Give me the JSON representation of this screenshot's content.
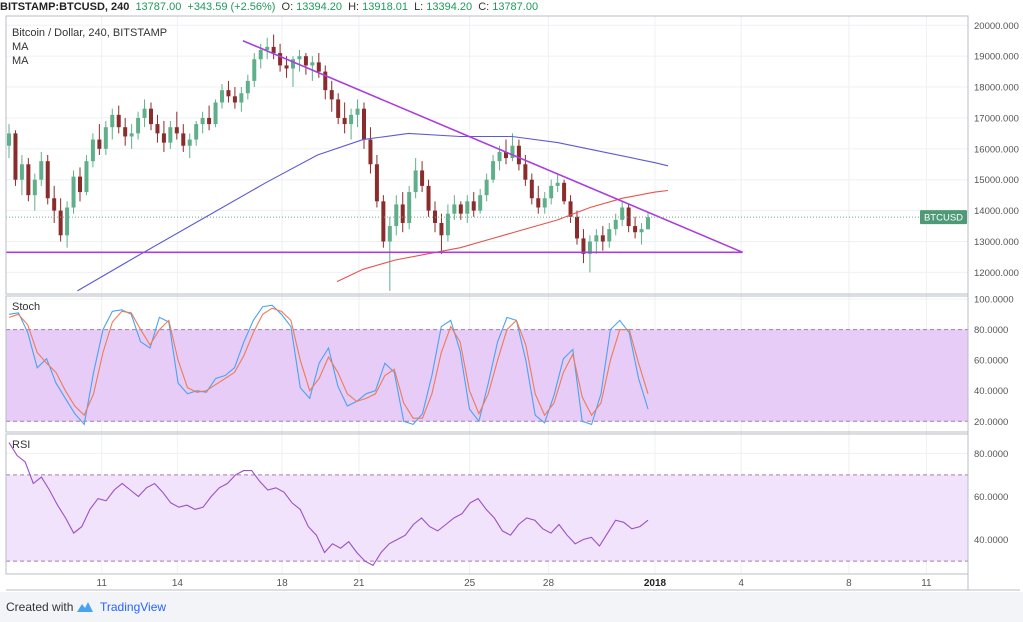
{
  "header": {
    "symbol": "BITSTAMP:BTCUSD, 240",
    "last": "13787.00",
    "change": "+343.59 (+2.56%)",
    "open_label": "O:",
    "open": "13394.20",
    "high_label": "H:",
    "high": "13918.01",
    "low_label": "L:",
    "low": "13394.20",
    "close_label": "C:",
    "close": "13787.00"
  },
  "footer": {
    "created_with": "Created with",
    "brand": "TradingView"
  },
  "colors": {
    "candle_up": "#5fb08a",
    "candle_down": "#8b2c2c",
    "ma_fast": "#e8534a",
    "ma_slow": "#5b5bd6",
    "trendline": "#a93ee0",
    "stoch_k": "#4aa3ef",
    "stoch_d": "#f07a55",
    "rsi": "#9c4fc6",
    "price_tag": "#4e9a76"
  },
  "chart_data": [
    {
      "type": "candlestick",
      "title": "Bitcoin / Dollar, 240, BITSTAMP",
      "indicators": [
        "MA",
        "MA"
      ],
      "price_label": "BTCUSD",
      "current_price": 13787,
      "ylim": [
        11300,
        20300
      ],
      "y_ticks": [
        "12000.000",
        "13000.000",
        "14000.000",
        "15000.000",
        "16000.000",
        "17000.000",
        "18000.000",
        "19000.000",
        "20000.000"
      ],
      "x_labels": [
        "11",
        "14",
        "18",
        "21",
        "25",
        "28",
        "2018",
        "4",
        "8",
        "11"
      ],
      "candles": [
        {
          "o": 16100,
          "h": 16800,
          "l": 15700,
          "c": 16500
        },
        {
          "o": 16500,
          "h": 16600,
          "l": 14800,
          "c": 15000
        },
        {
          "o": 15000,
          "h": 15800,
          "l": 14500,
          "c": 15500
        },
        {
          "o": 15500,
          "h": 15700,
          "l": 14300,
          "c": 14500
        },
        {
          "o": 14500,
          "h": 15200,
          "l": 14000,
          "c": 15000
        },
        {
          "o": 15000,
          "h": 15900,
          "l": 14800,
          "c": 15600
        },
        {
          "o": 15600,
          "h": 15800,
          "l": 14200,
          "c": 14400
        },
        {
          "o": 14400,
          "h": 14800,
          "l": 13600,
          "c": 14000
        },
        {
          "o": 14000,
          "h": 14400,
          "l": 13000,
          "c": 13200
        },
        {
          "o": 13200,
          "h": 14300,
          "l": 12800,
          "c": 14100
        },
        {
          "o": 14100,
          "h": 15300,
          "l": 13900,
          "c": 15100
        },
        {
          "o": 15100,
          "h": 15400,
          "l": 14300,
          "c": 14600
        },
        {
          "o": 14600,
          "h": 15800,
          "l": 14500,
          "c": 15600
        },
        {
          "o": 15600,
          "h": 16500,
          "l": 15400,
          "c": 16300
        },
        {
          "o": 16300,
          "h": 16800,
          "l": 15800,
          "c": 16000
        },
        {
          "o": 16000,
          "h": 16900,
          "l": 15800,
          "c": 16700
        },
        {
          "o": 16700,
          "h": 17300,
          "l": 16300,
          "c": 17100
        },
        {
          "o": 17100,
          "h": 17400,
          "l": 16500,
          "c": 16700
        },
        {
          "o": 16700,
          "h": 17000,
          "l": 16100,
          "c": 16400
        },
        {
          "o": 16400,
          "h": 16800,
          "l": 16000,
          "c": 16500
        },
        {
          "o": 16500,
          "h": 17200,
          "l": 16300,
          "c": 17000
        },
        {
          "o": 17000,
          "h": 17600,
          "l": 16700,
          "c": 17300
        },
        {
          "o": 17300,
          "h": 17500,
          "l": 16600,
          "c": 16800
        },
        {
          "o": 16800,
          "h": 17100,
          "l": 16200,
          "c": 16500
        },
        {
          "o": 16500,
          "h": 16900,
          "l": 15900,
          "c": 16200
        },
        {
          "o": 16200,
          "h": 16900,
          "l": 16000,
          "c": 16700
        },
        {
          "o": 16700,
          "h": 17200,
          "l": 16300,
          "c": 16500
        },
        {
          "o": 16500,
          "h": 16800,
          "l": 15900,
          "c": 16100
        },
        {
          "o": 16100,
          "h": 16500,
          "l": 15700,
          "c": 16300
        },
        {
          "o": 16300,
          "h": 16900,
          "l": 16100,
          "c": 16800
        },
        {
          "o": 16800,
          "h": 17200,
          "l": 16500,
          "c": 17000
        },
        {
          "o": 17000,
          "h": 17400,
          "l": 16600,
          "c": 16800
        },
        {
          "o": 16800,
          "h": 17600,
          "l": 16700,
          "c": 17500
        },
        {
          "o": 17500,
          "h": 18100,
          "l": 17300,
          "c": 17900
        },
        {
          "o": 17900,
          "h": 18200,
          "l": 17500,
          "c": 17700
        },
        {
          "o": 17700,
          "h": 18000,
          "l": 17300,
          "c": 17500
        },
        {
          "o": 17500,
          "h": 18000,
          "l": 17200,
          "c": 17800
        },
        {
          "o": 17800,
          "h": 18400,
          "l": 17600,
          "c": 18200
        },
        {
          "o": 18200,
          "h": 19100,
          "l": 18000,
          "c": 18900
        },
        {
          "o": 18900,
          "h": 19400,
          "l": 18600,
          "c": 19200
        },
        {
          "o": 19200,
          "h": 19600,
          "l": 18900,
          "c": 19300
        },
        {
          "o": 19300,
          "h": 19700,
          "l": 18900,
          "c": 19100
        },
        {
          "o": 19100,
          "h": 19400,
          "l": 18500,
          "c": 18700
        },
        {
          "o": 18700,
          "h": 19000,
          "l": 18300,
          "c": 18600
        },
        {
          "o": 18600,
          "h": 19000,
          "l": 18000,
          "c": 18900
        },
        {
          "o": 18900,
          "h": 19200,
          "l": 18500,
          "c": 19000
        },
        {
          "o": 19000,
          "h": 19100,
          "l": 18400,
          "c": 18700
        },
        {
          "o": 18700,
          "h": 19000,
          "l": 18200,
          "c": 18800
        },
        {
          "o": 18800,
          "h": 19100,
          "l": 18300,
          "c": 18500
        },
        {
          "o": 18500,
          "h": 18700,
          "l": 17600,
          "c": 17900
        },
        {
          "o": 17900,
          "h": 18200,
          "l": 17200,
          "c": 17600
        },
        {
          "o": 17600,
          "h": 17800,
          "l": 16800,
          "c": 17000
        },
        {
          "o": 17000,
          "h": 17500,
          "l": 16500,
          "c": 16800
        },
        {
          "o": 16800,
          "h": 17300,
          "l": 16300,
          "c": 17100
        },
        {
          "o": 17100,
          "h": 17600,
          "l": 16700,
          "c": 17300
        },
        {
          "o": 17300,
          "h": 17500,
          "l": 16000,
          "c": 16300
        },
        {
          "o": 16300,
          "h": 16700,
          "l": 15200,
          "c": 15500
        },
        {
          "o": 15500,
          "h": 15800,
          "l": 14100,
          "c": 14300
        },
        {
          "o": 14300,
          "h": 14500,
          "l": 12800,
          "c": 13000
        },
        {
          "o": 13000,
          "h": 13800,
          "l": 11400,
          "c": 13500
        },
        {
          "o": 13500,
          "h": 14500,
          "l": 13200,
          "c": 14200
        },
        {
          "o": 14200,
          "h": 14600,
          "l": 13300,
          "c": 13600
        },
        {
          "o": 13600,
          "h": 14800,
          "l": 13400,
          "c": 14600
        },
        {
          "o": 14600,
          "h": 15700,
          "l": 14400,
          "c": 15300
        },
        {
          "o": 15300,
          "h": 15600,
          "l": 14600,
          "c": 14800
        },
        {
          "o": 14800,
          "h": 15000,
          "l": 13800,
          "c": 14000
        },
        {
          "o": 14000,
          "h": 14300,
          "l": 13300,
          "c": 13600
        },
        {
          "o": 13600,
          "h": 13900,
          "l": 12600,
          "c": 13200
        },
        {
          "o": 13200,
          "h": 14200,
          "l": 13000,
          "c": 13900
        },
        {
          "o": 13900,
          "h": 14500,
          "l": 13700,
          "c": 14200
        },
        {
          "o": 14200,
          "h": 14300,
          "l": 13700,
          "c": 13900
        },
        {
          "o": 13900,
          "h": 14500,
          "l": 13600,
          "c": 14300
        },
        {
          "o": 14300,
          "h": 14600,
          "l": 13800,
          "c": 14000
        },
        {
          "o": 14000,
          "h": 14700,
          "l": 13900,
          "c": 14500
        },
        {
          "o": 14500,
          "h": 15200,
          "l": 14300,
          "c": 15000
        },
        {
          "o": 15000,
          "h": 15800,
          "l": 14900,
          "c": 15600
        },
        {
          "o": 15600,
          "h": 16100,
          "l": 15300,
          "c": 15900
        },
        {
          "o": 15900,
          "h": 16300,
          "l": 15500,
          "c": 15700
        },
        {
          "o": 15700,
          "h": 16500,
          "l": 15600,
          "c": 16100
        },
        {
          "o": 16100,
          "h": 16300,
          "l": 15300,
          "c": 15500
        },
        {
          "o": 15500,
          "h": 15800,
          "l": 14800,
          "c": 15000
        },
        {
          "o": 15000,
          "h": 15200,
          "l": 14200,
          "c": 14400
        },
        {
          "o": 14400,
          "h": 14800,
          "l": 13900,
          "c": 14100
        },
        {
          "o": 14100,
          "h": 14600,
          "l": 13900,
          "c": 14400
        },
        {
          "o": 14400,
          "h": 15000,
          "l": 14200,
          "c": 14800
        },
        {
          "o": 14800,
          "h": 15200,
          "l": 14600,
          "c": 14900
        },
        {
          "o": 14900,
          "h": 15000,
          "l": 14200,
          "c": 14300
        },
        {
          "o": 14300,
          "h": 14500,
          "l": 13600,
          "c": 13800
        },
        {
          "o": 13800,
          "h": 14000,
          "l": 12900,
          "c": 13100
        },
        {
          "o": 13100,
          "h": 13400,
          "l": 12300,
          "c": 12600
        },
        {
          "o": 12600,
          "h": 13200,
          "l": 12000,
          "c": 13000
        },
        {
          "o": 13000,
          "h": 13400,
          "l": 12600,
          "c": 13200
        },
        {
          "o": 13200,
          "h": 13500,
          "l": 12700,
          "c": 13000
        },
        {
          "o": 13000,
          "h": 13600,
          "l": 12800,
          "c": 13400
        },
        {
          "o": 13400,
          "h": 13900,
          "l": 13200,
          "c": 13700
        },
        {
          "o": 13700,
          "h": 14300,
          "l": 13500,
          "c": 14100
        },
        {
          "o": 14100,
          "h": 14200,
          "l": 13300,
          "c": 13500
        },
        {
          "o": 13500,
          "h": 13800,
          "l": 13100,
          "c": 13300
        },
        {
          "o": 13300,
          "h": 13600,
          "l": 12900,
          "c": 13400
        },
        {
          "o": 13394.2,
          "h": 13918.01,
          "l": 13394.2,
          "c": 13787
        }
      ],
      "ma_fast_series": [
        {
          "x": 0.51,
          "y": 11700
        },
        {
          "x": 0.55,
          "y": 12100
        },
        {
          "x": 0.6,
          "y": 12400
        },
        {
          "x": 0.65,
          "y": 12600
        },
        {
          "x": 0.7,
          "y": 12800
        },
        {
          "x": 0.75,
          "y": 13100
        },
        {
          "x": 0.8,
          "y": 13400
        },
        {
          "x": 0.85,
          "y": 13700
        },
        {
          "x": 0.9,
          "y": 14100
        },
        {
          "x": 0.95,
          "y": 14400
        },
        {
          "x": 1.0,
          "y": 14600
        },
        {
          "x": 1.02,
          "y": 14650
        }
      ],
      "ma_slow_series": [
        {
          "x": 0.11,
          "y": 11400
        },
        {
          "x": 0.2,
          "y": 12500
        },
        {
          "x": 0.3,
          "y": 13700
        },
        {
          "x": 0.4,
          "y": 14900
        },
        {
          "x": 0.48,
          "y": 15800
        },
        {
          "x": 0.55,
          "y": 16300
        },
        {
          "x": 0.62,
          "y": 16500
        },
        {
          "x": 0.7,
          "y": 16400
        },
        {
          "x": 0.78,
          "y": 16400
        },
        {
          "x": 0.85,
          "y": 16200
        },
        {
          "x": 0.92,
          "y": 15900
        },
        {
          "x": 1.0,
          "y": 15550
        },
        {
          "x": 1.02,
          "y": 15450
        }
      ],
      "trendlines": [
        {
          "from": {
            "x": 0.0,
            "y": 12650
          },
          "to": {
            "x": 1.135,
            "y": 12650
          }
        },
        {
          "from": {
            "x": 0.365,
            "y": 19500
          },
          "to": {
            "x": 1.135,
            "y": 12650
          }
        }
      ]
    },
    {
      "type": "line",
      "title": "Stoch",
      "ylim": [
        13,
        102
      ],
      "y_ticks": [
        "20.0000",
        "40.0000",
        "60.0000",
        "80.0000",
        "100.0000"
      ],
      "bands": [
        20,
        80
      ],
      "series": [
        {
          "values": [
            90,
            91,
            78,
            55,
            61,
            45,
            35,
            25,
            18,
            52,
            80,
            92,
            93,
            90,
            72,
            68,
            88,
            85,
            45,
            38,
            40,
            39,
            48,
            50,
            55,
            72,
            86,
            95,
            96,
            90,
            82,
            42,
            35,
            58,
            68,
            43,
            30,
            33,
            38,
            40,
            58,
            52,
            20,
            18,
            25,
            50,
            82,
            86,
            66,
            28,
            20,
            45,
            72,
            88,
            86,
            60,
            24,
            19,
            37,
            61,
            67,
            20,
            18,
            38,
            80,
            86,
            78,
            48,
            28
          ]
        },
        {
          "values": [
            88,
            90,
            83,
            65,
            58,
            52,
            40,
            30,
            24,
            38,
            65,
            85,
            92,
            91,
            80,
            70,
            80,
            86,
            60,
            42,
            39,
            40,
            44,
            48,
            52,
            63,
            78,
            90,
            94,
            92,
            86,
            60,
            40,
            48,
            62,
            52,
            38,
            33,
            35,
            38,
            50,
            54,
            32,
            22,
            22,
            38,
            65,
            82,
            72,
            40,
            25,
            38,
            60,
            80,
            86,
            70,
            38,
            24,
            32,
            52,
            64,
            36,
            24,
            32,
            60,
            80,
            80,
            58,
            38
          ]
        }
      ]
    },
    {
      "type": "line",
      "title": "RSI",
      "ylim": [
        24,
        89
      ],
      "y_ticks": [
        "40.0000",
        "60.0000",
        "80.0000"
      ],
      "bands": [
        30,
        70
      ],
      "series": [
        {
          "values": [
            85,
            79,
            76,
            66,
            69,
            63,
            56,
            50,
            43,
            46,
            54,
            59,
            58,
            63,
            66,
            63,
            60,
            64,
            66,
            62,
            57,
            55,
            56,
            54,
            55,
            60,
            64,
            66,
            70,
            72,
            72,
            67,
            63,
            64,
            62,
            57,
            54,
            46,
            42,
            34,
            38,
            36,
            39,
            34,
            30,
            28,
            34,
            38,
            40,
            42,
            47,
            50,
            46,
            44,
            47,
            50,
            52,
            57,
            59,
            54,
            50,
            44,
            42,
            47,
            50,
            49,
            45,
            43,
            47,
            42,
            38,
            40,
            41,
            37,
            43,
            49,
            48,
            45,
            46,
            49
          ]
        }
      ]
    }
  ]
}
